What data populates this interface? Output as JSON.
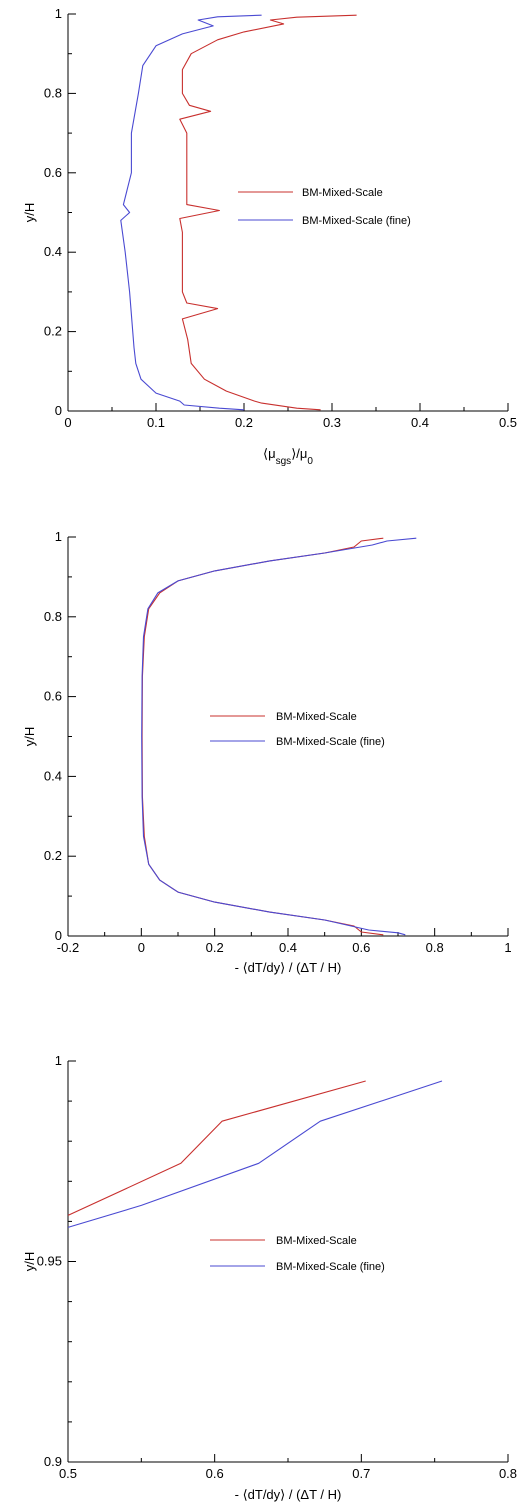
{
  "colors": {
    "series_primary": "#c8302e",
    "series_fine": "#4a4ad2",
    "axis": "#000000"
  },
  "chart_data": [
    {
      "type": "line",
      "xlabel": "⟨μsgs⟩/μ0",
      "ylabel": "y/H",
      "xlim": [
        0,
        0.5
      ],
      "ylim": [
        0,
        1
      ],
      "xticks": [
        0,
        0.1,
        0.2,
        0.3,
        0.4,
        0.5
      ],
      "xtick_labels": [
        "0",
        "0.1",
        "0.2",
        "0.3",
        "0.4",
        "0.5"
      ],
      "yticks": [
        0,
        0.2,
        0.4,
        0.6,
        0.8,
        1
      ],
      "ytick_labels": [
        "0",
        "0.2",
        "0.4",
        "0.6",
        "0.8",
        "1"
      ],
      "legend_position": "center-right",
      "series": [
        {
          "name": "BM-Mixed-Scale",
          "color": "#c8302e",
          "points": [
            [
              0.287,
              0.003
            ],
            [
              0.26,
              0.007
            ],
            [
              0.22,
              0.02
            ],
            [
              0.212,
              0.025
            ],
            [
              0.18,
              0.05
            ],
            [
              0.155,
              0.08
            ],
            [
              0.14,
              0.12
            ],
            [
              0.136,
              0.18
            ],
            [
              0.13,
              0.232
            ],
            [
              0.17,
              0.258
            ],
            [
              0.135,
              0.272
            ],
            [
              0.13,
              0.3
            ],
            [
              0.13,
              0.36
            ],
            [
              0.13,
              0.45
            ],
            [
              0.127,
              0.485
            ],
            [
              0.172,
              0.505
            ],
            [
              0.135,
              0.52
            ],
            [
              0.135,
              0.6
            ],
            [
              0.135,
              0.7
            ],
            [
              0.127,
              0.735
            ],
            [
              0.162,
              0.755
            ],
            [
              0.138,
              0.77
            ],
            [
              0.13,
              0.8
            ],
            [
              0.13,
              0.86
            ],
            [
              0.14,
              0.9
            ],
            [
              0.17,
              0.935
            ],
            [
              0.2,
              0.955
            ],
            [
              0.245,
              0.975
            ],
            [
              0.23,
              0.985
            ],
            [
              0.26,
              0.992
            ],
            [
              0.328,
              0.997
            ]
          ]
        },
        {
          "name": "BM-Mixed-Scale (fine)",
          "color": "#4a4ad2",
          "points": [
            [
              0.2,
              0.003
            ],
            [
              0.172,
              0.007
            ],
            [
              0.132,
              0.015
            ],
            [
              0.127,
              0.025
            ],
            [
              0.1,
              0.045
            ],
            [
              0.083,
              0.08
            ],
            [
              0.077,
              0.12
            ],
            [
              0.075,
              0.16
            ],
            [
              0.07,
              0.3
            ],
            [
              0.065,
              0.4
            ],
            [
              0.06,
              0.48
            ],
            [
              0.07,
              0.5
            ],
            [
              0.063,
              0.52
            ],
            [
              0.072,
              0.6
            ],
            [
              0.072,
              0.7
            ],
            [
              0.08,
              0.8
            ],
            [
              0.085,
              0.87
            ],
            [
              0.1,
              0.92
            ],
            [
              0.13,
              0.95
            ],
            [
              0.165,
              0.97
            ],
            [
              0.148,
              0.985
            ],
            [
              0.17,
              0.993
            ],
            [
              0.22,
              0.997
            ]
          ]
        }
      ]
    },
    {
      "type": "line",
      "xlabel": "- ⟨dT/dy⟩ / (ΔT / H)",
      "ylabel": "y/H",
      "xlim": [
        -0.2,
        1
      ],
      "ylim": [
        0,
        1
      ],
      "xticks": [
        -0.2,
        0,
        0.2,
        0.4,
        0.6,
        0.8,
        1
      ],
      "xtick_labels": [
        "-0.2",
        "0",
        "0.2",
        "0.4",
        "0.6",
        "0.8",
        "1"
      ],
      "yticks": [
        0,
        0.2,
        0.4,
        0.6,
        0.8,
        1
      ],
      "ytick_labels": [
        "0",
        "0.2",
        "0.4",
        "0.6",
        "0.8",
        "1"
      ],
      "legend_position": "center",
      "series": [
        {
          "name": "BM-Mixed-Scale",
          "color": "#c8302e",
          "points": [
            [
              0.66,
              0.003
            ],
            [
              0.6,
              0.01
            ],
            [
              0.58,
              0.025
            ],
            [
              0.5,
              0.04
            ],
            [
              0.35,
              0.06
            ],
            [
              0.2,
              0.085
            ],
            [
              0.1,
              0.11
            ],
            [
              0.05,
              0.14
            ],
            [
              0.02,
              0.18
            ],
            [
              0.008,
              0.25
            ],
            [
              0.003,
              0.35
            ],
            [
              0.002,
              0.5
            ],
            [
              0.003,
              0.65
            ],
            [
              0.008,
              0.75
            ],
            [
              0.02,
              0.82
            ],
            [
              0.05,
              0.86
            ],
            [
              0.1,
              0.89
            ],
            [
              0.2,
              0.915
            ],
            [
              0.35,
              0.94
            ],
            [
              0.5,
              0.96
            ],
            [
              0.58,
              0.975
            ],
            [
              0.6,
              0.99
            ],
            [
              0.66,
              0.997
            ]
          ]
        },
        {
          "name": "BM-Mixed-Scale (fine)",
          "color": "#4a4ad2",
          "points": [
            [
              0.72,
              0.003
            ],
            [
              0.7,
              0.008
            ],
            [
              0.62,
              0.015
            ],
            [
              0.5,
              0.04
            ],
            [
              0.35,
              0.06
            ],
            [
              0.2,
              0.085
            ],
            [
              0.1,
              0.11
            ],
            [
              0.05,
              0.14
            ],
            [
              0.02,
              0.18
            ],
            [
              0.006,
              0.25
            ],
            [
              0.002,
              0.35
            ],
            [
              0.001,
              0.5
            ],
            [
              0.002,
              0.65
            ],
            [
              0.006,
              0.75
            ],
            [
              0.018,
              0.82
            ],
            [
              0.045,
              0.86
            ],
            [
              0.1,
              0.89
            ],
            [
              0.2,
              0.915
            ],
            [
              0.35,
              0.94
            ],
            [
              0.5,
              0.96
            ],
            [
              0.63,
              0.98
            ],
            [
              0.67,
              0.99
            ],
            [
              0.75,
              0.997
            ]
          ]
        }
      ]
    },
    {
      "type": "line",
      "xlabel": "- ⟨dT/dy⟩ / (ΔT / H)",
      "ylabel": "y/H",
      "xlim": [
        0.5,
        0.8
      ],
      "ylim": [
        0.9,
        1
      ],
      "xticks": [
        0.5,
        0.6,
        0.7,
        0.8
      ],
      "xtick_labels": [
        "0.5",
        "0.6",
        "0.7",
        "0.8"
      ],
      "yticks": [
        0.9,
        0.95,
        1
      ],
      "ytick_labels": [
        "0.9",
        "0.95",
        "1"
      ],
      "legend_position": "center",
      "series": [
        {
          "name": "BM-Mixed-Scale",
          "color": "#c8302e",
          "points": [
            [
              0.5,
              0.9615
            ],
            [
              0.577,
              0.9745
            ],
            [
              0.605,
              0.985
            ],
            [
              0.703,
              0.995
            ]
          ]
        },
        {
          "name": "BM-Mixed-Scale (fine)",
          "color": "#4a4ad2",
          "points": [
            [
              0.5,
              0.9585
            ],
            [
              0.55,
              0.964
            ],
            [
              0.63,
              0.9745
            ],
            [
              0.672,
              0.985
            ],
            [
              0.755,
              0.995
            ]
          ]
        }
      ]
    }
  ]
}
